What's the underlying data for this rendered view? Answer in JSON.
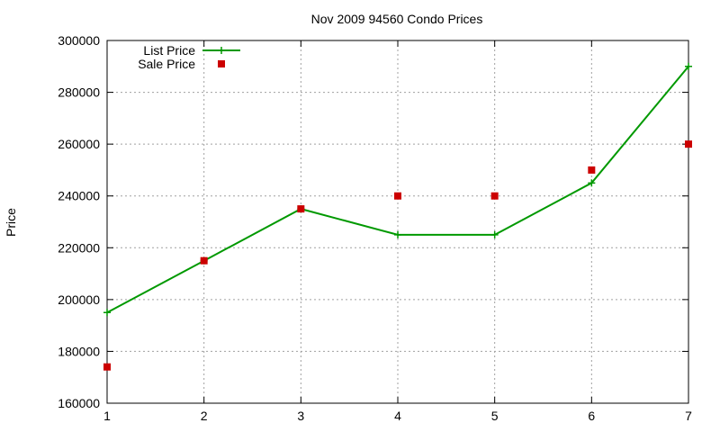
{
  "chart_data": {
    "type": "line",
    "title": "Nov 2009 94560 Condo Prices",
    "xlabel": "",
    "ylabel": "Price",
    "x": [
      1,
      2,
      3,
      4,
      5,
      6,
      7
    ],
    "xlim": [
      1,
      7
    ],
    "ylim": [
      160000,
      300000
    ],
    "x_ticks": [
      1,
      2,
      3,
      4,
      5,
      6,
      7
    ],
    "y_ticks": [
      160000,
      180000,
      200000,
      220000,
      240000,
      260000,
      280000,
      300000
    ],
    "x_tick_labels": [
      "1",
      "2",
      "3",
      "4",
      "5",
      "6",
      "7"
    ],
    "y_tick_labels": [
      "160000",
      "180000",
      "200000",
      "220000",
      "240000",
      "260000",
      "280000",
      "300000"
    ],
    "grid": true,
    "legend_position": "top-left",
    "series": [
      {
        "name": "List Price",
        "style": "line with cross markers",
        "color": "#009900",
        "values": [
          195000,
          215000,
          235000,
          225000,
          225000,
          245000,
          290000
        ]
      },
      {
        "name": "Sale Price",
        "style": "square markers",
        "color": "#cc0000",
        "values": [
          174000,
          215000,
          235000,
          240000,
          240000,
          250000,
          260000
        ]
      }
    ]
  }
}
